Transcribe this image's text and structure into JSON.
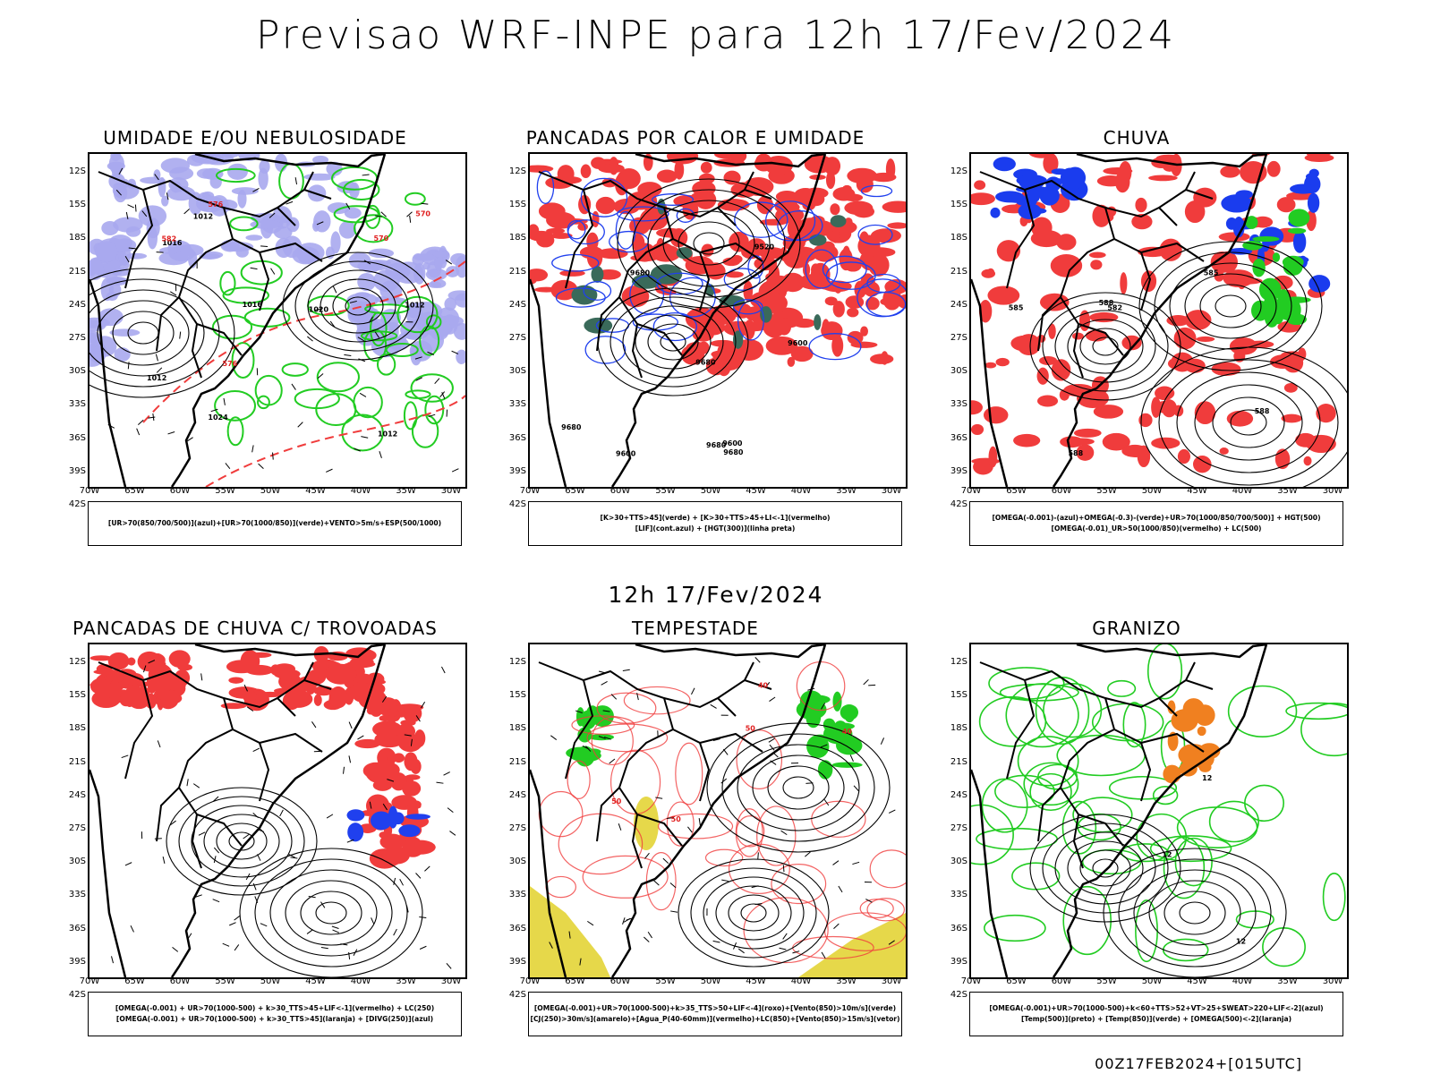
{
  "main_title": "Previsao WRF-INPE  para 12h 17/Fev/2024",
  "mid_title": "12h 17/Fev/2024",
  "footer": "00Z17FEB2024+[015UTC]",
  "lat_ticks": [
    "12S",
    "15S",
    "18S",
    "21S",
    "24S",
    "27S",
    "30S",
    "33S",
    "36S",
    "39S",
    "42S"
  ],
  "lon_ticks": [
    "70W",
    "65W",
    "60W",
    "55W",
    "50W",
    "45W",
    "40W",
    "35W",
    "30W"
  ],
  "colors": {
    "blue": "#a9a9ee",
    "green": "#22cc22",
    "red": "#f03c3c",
    "yellow": "#e6d84a",
    "orange": "#f08020"
  },
  "panels": [
    {
      "title": "UMIDADE E/OU NEBULOSIDADE",
      "legend": [
        "[UR>70(850/700/500)](azul)+[UR>70(1000/850)](verde)+VENTO>5m/s+ESP(500/1000)"
      ],
      "labels": [
        "1012",
        "1012",
        "1016",
        "1012",
        "1012",
        "1016",
        "1020",
        "1024",
        "576",
        "570",
        "570",
        "576",
        "582"
      ]
    },
    {
      "title": "PANCADAS POR CALOR E UMIDADE",
      "legend": [
        "[K>30+TTS>45](verde) + [K>30+TTS>45+LI<-1](vermelho)",
        "[LIF](cont.azul) + [HGT(300)](linha preta)"
      ],
      "labels": [
        "9680",
        "9680",
        "9680",
        "9600",
        "9600",
        "9680",
        "9520",
        "9600",
        "9680"
      ]
    },
    {
      "title": "CHUVA",
      "legend": [
        "[OMEGA(-0.001)-(azul)+OMEGA(-0.3)-(verde)+UR>70(1000/850/700/500)] + HGT(500)",
        "[OMEGA(-0.01)_UR>50(1000/850)(vermelho) + LC(500)"
      ],
      "labels": [
        "588",
        "585",
        "585",
        "588",
        "582",
        "588"
      ]
    },
    {
      "title": "PANCADAS DE CHUVA C/ TROVOADAS",
      "legend": [
        "[OMEGA(-0.001) + UR>70(1000-500) + k>30_TTS>45+LIF<-1](vermelho) + LC(250)",
        "[OMEGA(-0.001) + UR>70(1000-500) + k>30_TTS>45](laranja) + [DIVG(250)](azul)"
      ],
      "labels": []
    },
    {
      "title": "TEMPESTADE",
      "legend": [
        "[OMEGA(-0.001)+UR>70(1000-500)+k>35_TTS>50+LIF<-4](roxo)+[Vento(850)>10m/s](verde)",
        "[CJ(250)>30m/s](amarelo)+[Agua_P(40-60mm)](vermelho)+LC(850)+[Vento(850)>15m/s](vetor)"
      ],
      "labels": [
        "50",
        "50",
        "40",
        "40",
        "50"
      ]
    },
    {
      "title": "GRANIZO",
      "legend": [
        "[OMEGA(-0.001)+UR>70(1000-500)+k<60+TTS>52+VT>25+SWEAT>220+LIF<-2](azul)",
        "[Temp(500)](preto) + [Temp(850)](verde) + [OMEGA(500)<-2](laranja)"
      ],
      "labels": [
        "12",
        "12",
        "12"
      ]
    }
  ]
}
